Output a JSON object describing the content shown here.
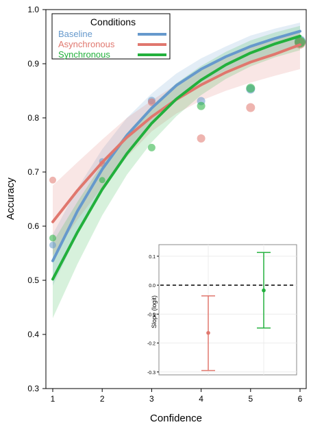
{
  "chart_data": [
    {
      "type": "line",
      "xlabel": "Confidence",
      "ylabel": "Accuracy",
      "xlim": [
        1,
        6
      ],
      "ylim": [
        0.3,
        1.0
      ],
      "xticks": [
        1,
        2,
        3,
        4,
        5,
        6
      ],
      "yticks": [
        0.3,
        0.4,
        0.5,
        0.6,
        0.7,
        0.8,
        0.9,
        1.0
      ],
      "grid": false,
      "legend": {
        "title": "Conditions",
        "position": "top-left"
      },
      "series": [
        {
          "name": "Baseline",
          "color": "#6699cc",
          "fit": {
            "x": [
              1,
              1.5,
              2,
              2.5,
              3,
              3.5,
              4,
              4.5,
              5,
              5.5,
              6
            ],
            "y": [
              0.536,
              0.628,
              0.705,
              0.768,
              0.818,
              0.86,
              0.89,
              0.913,
              0.932,
              0.947,
              0.96
            ],
            "lower": [
              0.49,
              0.585,
              0.668,
              0.735,
              0.79,
              0.835,
              0.865,
              0.888,
              0.905,
              0.92,
              0.93
            ],
            "upper": [
              0.585,
              0.67,
              0.742,
              0.8,
              0.845,
              0.882,
              0.91,
              0.932,
              0.952,
              0.965,
              0.976
            ]
          },
          "points": [
            {
              "x": 1,
              "y": 0.565
            },
            {
              "x": 2,
              "y": 0.72
            },
            {
              "x": 3,
              "y": 0.832
            },
            {
              "x": 4,
              "y": 0.831
            },
            {
              "x": 5,
              "y": 0.853
            },
            {
              "x": 6,
              "y": 0.942
            }
          ]
        },
        {
          "name": "Asynchronous",
          "color": "#e0776e",
          "fit": {
            "x": [
              1,
              1.5,
              2,
              2.5,
              3,
              3.5,
              4,
              4.5,
              5,
              5.5,
              6
            ],
            "y": [
              0.608,
              0.666,
              0.718,
              0.764,
              0.802,
              0.834,
              0.861,
              0.884,
              0.903,
              0.918,
              0.935
            ],
            "lower": [
              0.545,
              0.612,
              0.672,
              0.728,
              0.775,
              0.808,
              0.832,
              0.85,
              0.865,
              0.878,
              0.89
            ],
            "upper": [
              0.675,
              0.718,
              0.76,
              0.8,
              0.832,
              0.862,
              0.888,
              0.91,
              0.93,
              0.945,
              0.958
            ]
          },
          "points": [
            {
              "x": 1,
              "y": 0.685
            },
            {
              "x": 2,
              "y": 0.715
            },
            {
              "x": 3,
              "y": 0.829
            },
            {
              "x": 4,
              "y": 0.762
            },
            {
              "x": 5,
              "y": 0.819
            },
            {
              "x": 6,
              "y": 0.938
            }
          ]
        },
        {
          "name": "Synchronous",
          "color": "#22b03c",
          "fit": {
            "x": [
              1,
              1.5,
              2,
              2.5,
              3,
              3.5,
              4,
              4.5,
              5,
              5.5,
              6
            ],
            "y": [
              0.502,
              0.589,
              0.668,
              0.734,
              0.79,
              0.835,
              0.87,
              0.898,
              0.92,
              0.937,
              0.951
            ],
            "lower": [
              0.43,
              0.53,
              0.62,
              0.695,
              0.755,
              0.803,
              0.842,
              0.872,
              0.895,
              0.912,
              0.925
            ],
            "upper": [
              0.57,
              0.645,
              0.715,
              0.772,
              0.822,
              0.864,
              0.896,
              0.922,
              0.943,
              0.958,
              0.97
            ]
          },
          "points": [
            {
              "x": 1,
              "y": 0.578
            },
            {
              "x": 2,
              "y": 0.685
            },
            {
              "x": 3,
              "y": 0.745
            },
            {
              "x": 4,
              "y": 0.822
            },
            {
              "x": 5,
              "y": 0.855
            },
            {
              "x": 6,
              "y": 0.94
            }
          ]
        }
      ]
    },
    {
      "type": "scatter",
      "ylabel": "Slope (logit)",
      "xlabel": "",
      "ylim": [
        -0.31,
        0.14
      ],
      "yticks": [
        -0.3,
        -0.2,
        -0.1,
        0.0,
        0.1
      ],
      "yticklabels": [
        "-0.3",
        "-0.2",
        "-0.1",
        "0.0",
        "0.1"
      ],
      "reference_line": {
        "y": 0.0,
        "style": "dashed"
      },
      "grid": true,
      "series": [
        {
          "color": "#e0776e",
          "estimate": -0.165,
          "lower": -0.295,
          "upper": -0.037
        },
        {
          "color": "#22b03c",
          "estimate": -0.018,
          "lower": -0.148,
          "upper": 0.113
        }
      ]
    }
  ]
}
